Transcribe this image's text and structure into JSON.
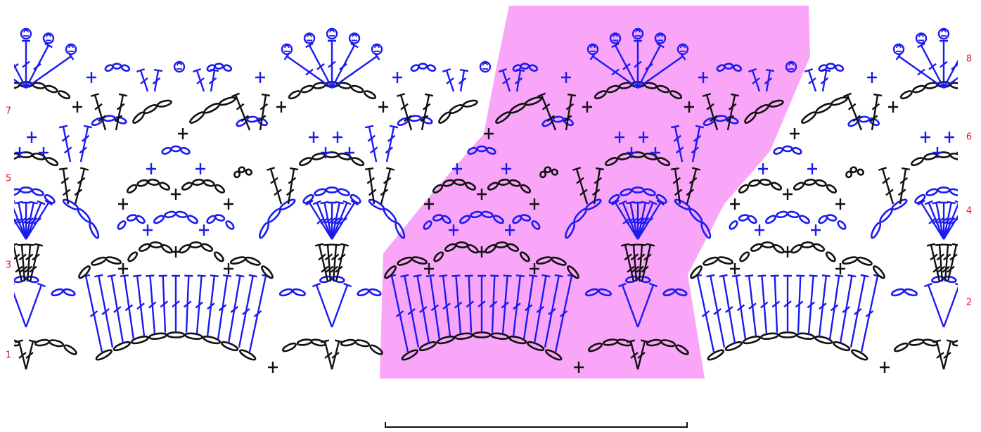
{
  "row_labels": {
    "left": [
      "1",
      "3",
      "5",
      "7"
    ],
    "right": [
      "2",
      "4",
      "6",
      "8"
    ]
  }
}
